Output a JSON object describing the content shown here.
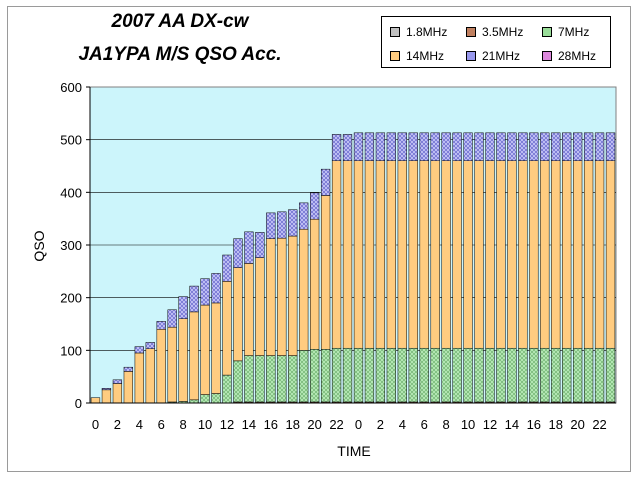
{
  "chart_data": {
    "type": "bar",
    "stacked": true,
    "title": "2007 AA DX-cw",
    "subtitle": "JA1YPA M/S QSO Acc.",
    "xlabel": "TIME",
    "ylabel": "QSO",
    "ylim": [
      0,
      600
    ],
    "yticks": [
      0,
      100,
      200,
      300,
      400,
      500,
      600
    ],
    "xtick_labels": [
      "0",
      "2",
      "4",
      "6",
      "8",
      "10",
      "12",
      "14",
      "16",
      "18",
      "20",
      "22",
      "0",
      "2",
      "4",
      "6",
      "8",
      "10",
      "12",
      "14",
      "16",
      "18",
      "20",
      "22"
    ],
    "categories": [
      "0",
      "1",
      "2",
      "3",
      "4",
      "5",
      "6",
      "7",
      "8",
      "9",
      "10",
      "11",
      "12",
      "13",
      "14",
      "15",
      "16",
      "17",
      "18",
      "19",
      "20",
      "21",
      "22",
      "23",
      "0",
      "1",
      "2",
      "3",
      "4",
      "5",
      "6",
      "7",
      "8",
      "9",
      "10",
      "11",
      "12",
      "13",
      "14",
      "15",
      "16",
      "17",
      "18",
      "19",
      "20",
      "21",
      "22",
      "23"
    ],
    "legend_position": "top-right",
    "grid": "horizontal",
    "series": [
      {
        "name": "1.8MHz",
        "color": "#c0c0c0",
        "values": [
          0,
          0,
          0,
          0,
          0,
          0,
          0,
          0,
          0,
          0,
          0,
          0,
          0,
          0,
          0,
          0,
          0,
          0,
          0,
          0,
          0,
          0,
          0,
          0,
          0,
          0,
          0,
          0,
          0,
          0,
          0,
          0,
          0,
          0,
          0,
          0,
          0,
          0,
          0,
          0,
          0,
          0,
          0,
          0,
          0,
          0,
          0,
          0
        ]
      },
      {
        "name": "3.5MHz",
        "color": "#c08060",
        "values": [
          0,
          0,
          0,
          0,
          0,
          0,
          0,
          0,
          0,
          0,
          0,
          0,
          0,
          2,
          2,
          2,
          2,
          2,
          2,
          2,
          2,
          2,
          2,
          2,
          2,
          2,
          2,
          2,
          2,
          2,
          2,
          2,
          2,
          2,
          2,
          2,
          2,
          2,
          2,
          2,
          2,
          2,
          2,
          2,
          2,
          2,
          2,
          2
        ]
      },
      {
        "name": "7MHz",
        "color": "#99dd99",
        "values": [
          0,
          0,
          0,
          0,
          0,
          0,
          0,
          2,
          3,
          6,
          16,
          18,
          53,
          78,
          88,
          88,
          88,
          88,
          88,
          98,
          100,
          100,
          102,
          102,
          102,
          102,
          102,
          102,
          102,
          102,
          102,
          102,
          102,
          102,
          102,
          102,
          102,
          102,
          102,
          102,
          102,
          102,
          102,
          102,
          102,
          102,
          102,
          102
        ]
      },
      {
        "name": "14MHz",
        "color": "#ffcc80",
        "values": [
          10,
          25,
          37,
          60,
          95,
          103,
          140,
          142,
          157,
          167,
          170,
          172,
          178,
          177,
          175,
          186,
          222,
          223,
          227,
          230,
          247,
          292,
          356,
          356,
          356,
          356,
          356,
          356,
          356,
          356,
          356,
          356,
          356,
          356,
          356,
          356,
          356,
          356,
          356,
          356,
          356,
          356,
          356,
          356,
          356,
          356,
          356,
          356
        ]
      },
      {
        "name": "21MHz",
        "color": "#9999ee",
        "values": [
          0,
          3,
          7,
          8,
          12,
          12,
          15,
          33,
          42,
          49,
          50,
          56,
          50,
          55,
          60,
          48,
          49,
          50,
          50,
          50,
          50,
          50,
          50,
          50,
          53,
          53,
          53,
          53,
          53,
          53,
          53,
          53,
          53,
          53,
          53,
          53,
          53,
          53,
          53,
          53,
          53,
          53,
          53,
          53,
          53,
          53,
          53,
          53
        ]
      },
      {
        "name": "28MHz",
        "color": "#dd88dd",
        "values": [
          0,
          0,
          0,
          0,
          0,
          0,
          0,
          0,
          0,
          0,
          0,
          0,
          0,
          0,
          0,
          0,
          0,
          0,
          0,
          0,
          0,
          0,
          0,
          0,
          0,
          0,
          0,
          0,
          0,
          0,
          0,
          0,
          0,
          0,
          0,
          0,
          0,
          0,
          0,
          0,
          0,
          0,
          0,
          0,
          0,
          0,
          0,
          0
        ]
      }
    ]
  }
}
